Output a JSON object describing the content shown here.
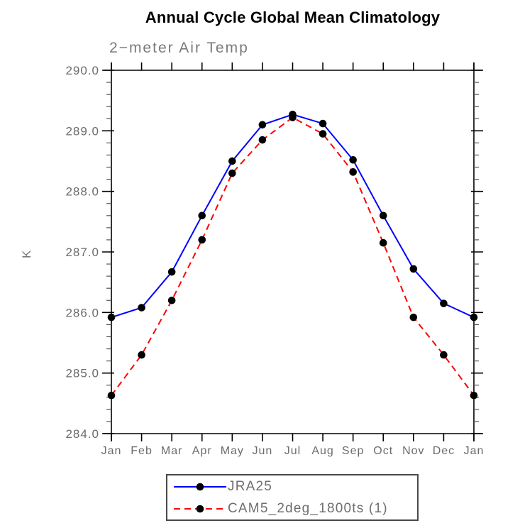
{
  "page": {
    "title": "Annual Cycle Global Mean Climatology",
    "subtitle": "2−meter Air Temp"
  },
  "chart_data": {
    "type": "line",
    "title": "Annual Cycle Global Mean Climatology",
    "subtitle": "2−meter Air Temp",
    "xlabel": "",
    "ylabel": "K",
    "categories": [
      "Jan",
      "Feb",
      "Mar",
      "Apr",
      "May",
      "Jun",
      "Jul",
      "Aug",
      "Sep",
      "Oct",
      "Nov",
      "Dec",
      "Jan"
    ],
    "ylim": [
      284.0,
      290.0
    ],
    "ytick_step": 1.0,
    "ytick_minor_step": 0.2,
    "ytick_labels": [
      "284.0",
      "285.0",
      "286.0",
      "287.0",
      "288.0",
      "289.0",
      "290.0"
    ],
    "grid": false,
    "legend_position": "bottom-center",
    "series": [
      {
        "name": "JRA25",
        "line_color": "#0000ff",
        "line_style": "solid",
        "marker": "filled-circle",
        "marker_color": "#000000",
        "values": [
          285.92,
          286.08,
          286.67,
          287.6,
          288.5,
          289.1,
          289.27,
          289.12,
          288.52,
          287.6,
          286.72,
          286.15,
          285.92
        ]
      },
      {
        "name": "CAM5_2deg_1800ts (1)",
        "line_color": "#ff0000",
        "line_style": "dashed",
        "marker": "filled-circle",
        "marker_color": "#000000",
        "values": [
          284.63,
          285.3,
          286.2,
          287.2,
          288.3,
          288.85,
          289.22,
          288.95,
          288.32,
          287.15,
          285.92,
          285.3,
          284.63
        ]
      }
    ]
  },
  "colors": {
    "axis": "#000000",
    "tick_label": "#6b6b6b",
    "title_text": "#000000",
    "subtitle_text": "#7a7a7a",
    "legend_text": "#6e6e6e",
    "legend_border": "#4a4a4a"
  }
}
